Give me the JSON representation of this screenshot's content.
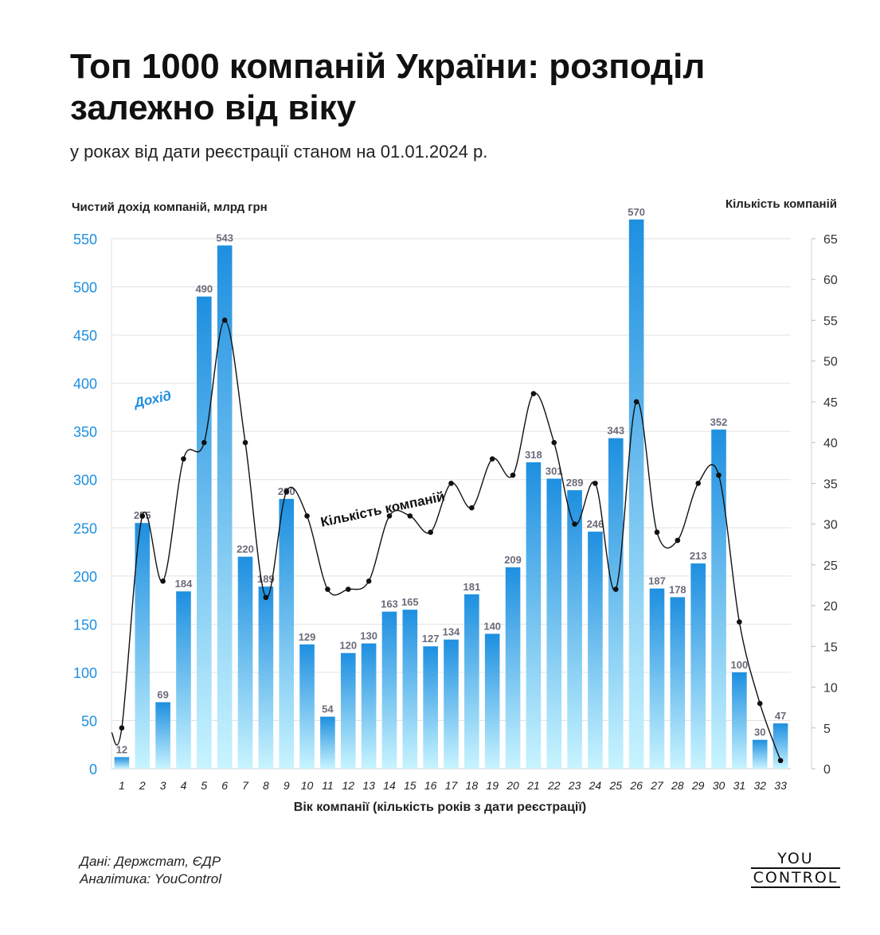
{
  "header": {
    "title": "Топ 1000 компаній України: розподіл залежно від віку",
    "subtitle": "у роках від дати реєстрації станом на 01.01.2024 р."
  },
  "footer": {
    "source_line1": "Дані: Держстат, ЄДР",
    "source_line2": "Аналітика: YouControl",
    "logo_top": "YOU",
    "logo_bottom": "CONTROL"
  },
  "chart_data": {
    "type": "bar",
    "xlabel": "Вік компанії (кількість років з дати реєстрації)",
    "ylabel": "Чистий дохід компаній, млрд грн",
    "y2label": "Кількість компаній",
    "ylim": [
      0,
      550
    ],
    "y2lim": [
      0,
      65
    ],
    "yticks": [
      0,
      50,
      100,
      150,
      200,
      250,
      300,
      350,
      400,
      450,
      500,
      550
    ],
    "y2ticks": [
      0,
      5,
      10,
      15,
      20,
      25,
      30,
      35,
      40,
      45,
      50,
      55,
      60,
      65
    ],
    "grid": true,
    "categories": [
      "1",
      "2",
      "3",
      "4",
      "5",
      "6",
      "7",
      "8",
      "9",
      "10",
      "11",
      "12",
      "13",
      "14",
      "15",
      "16",
      "17",
      "18",
      "19",
      "20",
      "21",
      "22",
      "23",
      "24",
      "25",
      "26",
      "27",
      "28",
      "29",
      "30",
      "31",
      "32",
      "33"
    ],
    "series": [
      {
        "name": "Дохід",
        "axis": "left",
        "type": "bar",
        "color": "#1e8fe0",
        "values": [
          12,
          255,
          69,
          184,
          490,
          543,
          220,
          189,
          280,
          129,
          54,
          120,
          130,
          163,
          165,
          127,
          134,
          181,
          140,
          209,
          318,
          301,
          289,
          246,
          343,
          570,
          187,
          178,
          213,
          352,
          100,
          30,
          47
        ]
      },
      {
        "name": "Кількість компаній",
        "axis": "right",
        "type": "line",
        "color": "#111111",
        "values": [
          5,
          31,
          23,
          38,
          40,
          55,
          40,
          21,
          34,
          31,
          22,
          22,
          23,
          31,
          31,
          29,
          35,
          32,
          38,
          36,
          46,
          40,
          30,
          35,
          22,
          45,
          29,
          28,
          35,
          36,
          18,
          8,
          1
        ]
      }
    ]
  }
}
